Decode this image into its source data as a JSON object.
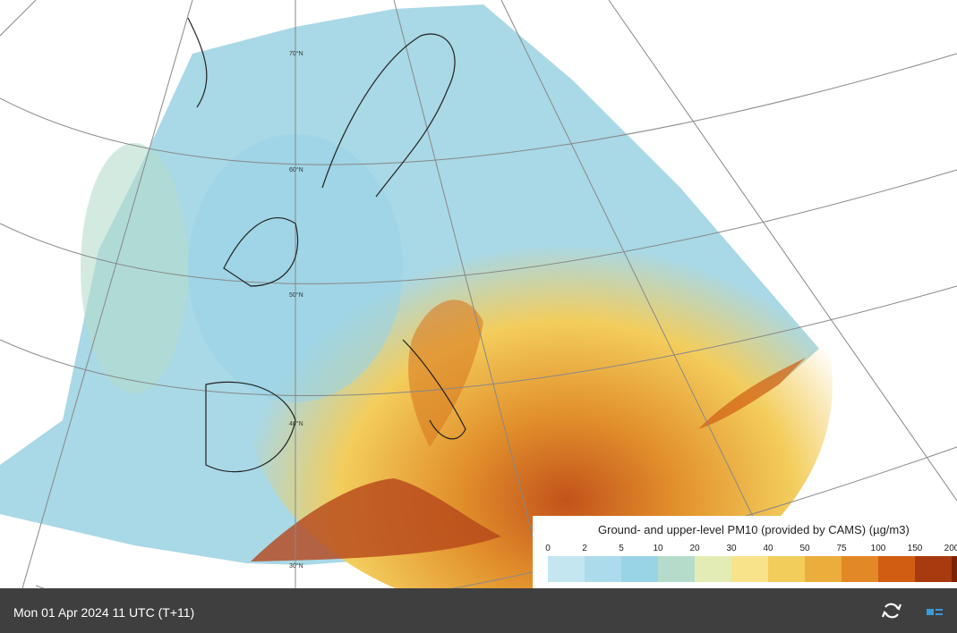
{
  "map": {
    "latitude_labels": [
      "70°N",
      "60°N",
      "50°N",
      "40°N",
      "30°N"
    ]
  },
  "legend": {
    "title": "Ground- and upper-level PM10 (provided by CAMS) (µg/m3)",
    "ticks": [
      0,
      2,
      5,
      10,
      20,
      30,
      40,
      50,
      75,
      100,
      150,
      200
    ],
    "colors": [
      "#c4e6f1",
      "#acdcec",
      "#99d4e6",
      "#b5dccb",
      "#e4ecb5",
      "#f8e38a",
      "#f3cd5c",
      "#ebae3d",
      "#e38826",
      "#d05d12",
      "#a83a10",
      "#7d2207"
    ]
  },
  "status_bar": {
    "time": "Mon 01 Apr 2024 11 UTC (T+11)"
  }
}
